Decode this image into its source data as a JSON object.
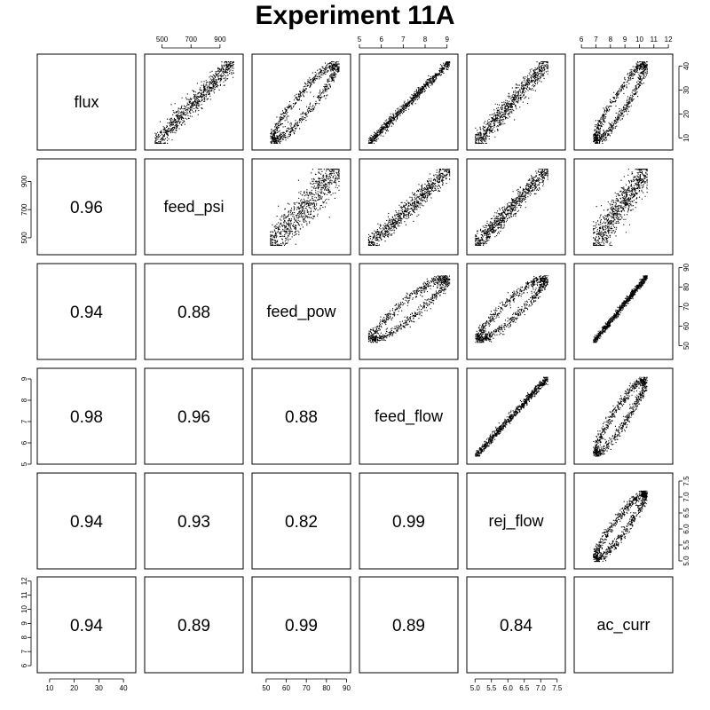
{
  "chart_data": {
    "type": "scatter",
    "title": "Experiment 11A",
    "variables": [
      "flux",
      "feed_psi",
      "feed_pow",
      "feed_flow",
      "rej_flow",
      "ac_curr"
    ],
    "axis_ranges": {
      "flux": [
        5,
        45
      ],
      "feed_psi": [
        380,
        1060
      ],
      "feed_pow": [
        43,
        92
      ],
      "feed_flow": [
        5,
        9.5
      ],
      "rej_flow": [
        4.75,
        7.75
      ],
      "ac_curr": [
        5.5,
        12.3
      ]
    },
    "axis_ticks": {
      "flux": [
        10,
        20,
        30,
        40
      ],
      "feed_psi": [
        500,
        700,
        900
      ],
      "feed_pow": [
        50,
        60,
        70,
        80,
        90
      ],
      "feed_flow": [
        5,
        6,
        7,
        8,
        9
      ],
      "rej_flow": [
        5.0,
        5.5,
        6.0,
        6.5,
        7.0,
        7.5
      ],
      "ac_curr": [
        6,
        7,
        8,
        9,
        10,
        11,
        12
      ]
    },
    "tick_labels": {
      "top_feed_psi": [
        "500",
        "700",
        "900"
      ],
      "top_feed_flow": [
        "5",
        "6",
        "7",
        "8",
        "9"
      ],
      "top_ac_curr": [
        "6",
        "7",
        "8",
        "9",
        "10",
        "11",
        "12"
      ],
      "right_flux": [
        "10",
        "20",
        "30",
        "40"
      ],
      "right_feed_pow": [
        "50",
        "60",
        "70",
        "80",
        "90"
      ],
      "right_rej_flow": [
        "5.0",
        "5.5",
        "6.0",
        "6.5",
        "7.0",
        "7.5"
      ],
      "left_feed_psi": [
        "500",
        "700",
        "900"
      ],
      "left_feed_flow": [
        "5",
        "6",
        "7",
        "8",
        "9"
      ],
      "left_ac_curr": [
        "6",
        "7",
        "8",
        "9",
        "10",
        "11",
        "12"
      ],
      "bottom_flux": [
        "10",
        "20",
        "30",
        "40"
      ],
      "bottom_feed_pow": [
        "50",
        "60",
        "70",
        "80",
        "90"
      ],
      "bottom_rej_flow": [
        "5.0",
        "5.5",
        "6.0",
        "6.5",
        "7.0",
        "7.5"
      ]
    },
    "correlations": [
      {
        "row": "feed_psi",
        "col": "flux",
        "label": "0.96"
      },
      {
        "row": "feed_pow",
        "col": "flux",
        "label": "0.94"
      },
      {
        "row": "feed_pow",
        "col": "feed_psi",
        "label": "0.88"
      },
      {
        "row": "feed_flow",
        "col": "flux",
        "label": "0.98"
      },
      {
        "row": "feed_flow",
        "col": "feed_psi",
        "label": "0.96"
      },
      {
        "row": "feed_flow",
        "col": "feed_pow",
        "label": "0.88"
      },
      {
        "row": "rej_flow",
        "col": "flux",
        "label": "0.94"
      },
      {
        "row": "rej_flow",
        "col": "feed_psi",
        "label": "0.93"
      },
      {
        "row": "rej_flow",
        "col": "feed_pow",
        "label": "0.82"
      },
      {
        "row": "rej_flow",
        "col": "feed_flow",
        "label": "0.99"
      },
      {
        "row": "ac_curr",
        "col": "flux",
        "label": "0.94"
      },
      {
        "row": "ac_curr",
        "col": "feed_psi",
        "label": "0.89"
      },
      {
        "row": "ac_curr",
        "col": "feed_pow",
        "label": "0.99"
      },
      {
        "row": "ac_curr",
        "col": "feed_flow",
        "label": "0.89"
      },
      {
        "row": "ac_curr",
        "col": "rej_flow",
        "label": "0.84"
      }
    ],
    "scatter_panels": [
      {
        "x": "feed_psi",
        "y": "flux",
        "shape": "band"
      },
      {
        "x": "feed_pow",
        "y": "flux",
        "shape": "ring"
      },
      {
        "x": "feed_flow",
        "y": "flux",
        "shape": "thin"
      },
      {
        "x": "rej_flow",
        "y": "flux",
        "shape": "band"
      },
      {
        "x": "ac_curr",
        "y": "flux",
        "shape": "ring"
      },
      {
        "x": "feed_pow",
        "y": "feed_psi",
        "shape": "blob"
      },
      {
        "x": "feed_flow",
        "y": "feed_psi",
        "shape": "band"
      },
      {
        "x": "rej_flow",
        "y": "feed_psi",
        "shape": "band"
      },
      {
        "x": "ac_curr",
        "y": "feed_psi",
        "shape": "blob"
      },
      {
        "x": "feed_flow",
        "y": "feed_pow",
        "shape": "ring"
      },
      {
        "x": "rej_flow",
        "y": "feed_pow",
        "shape": "ring"
      },
      {
        "x": "ac_curr",
        "y": "feed_pow",
        "shape": "thin"
      },
      {
        "x": "rej_flow",
        "y": "feed_flow",
        "shape": "thin"
      },
      {
        "x": "ac_curr",
        "y": "feed_flow",
        "shape": "ring"
      },
      {
        "x": "ac_curr",
        "y": "rej_flow",
        "shape": "ring"
      }
    ],
    "data_bounds": {
      "flux": [
        8,
        42
      ],
      "feed_psi": [
        450,
        990
      ],
      "feed_pow": [
        52,
        86
      ],
      "feed_flow": [
        5.4,
        9.1
      ],
      "rej_flow": [
        5.0,
        7.2
      ],
      "ac_curr": [
        6.8,
        10.5
      ]
    }
  }
}
